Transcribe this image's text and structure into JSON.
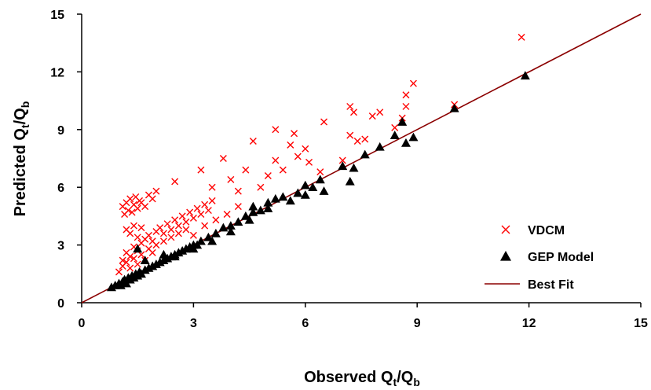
{
  "chart_data": {
    "type": "scatter",
    "xlabel": {
      "main": "Observed Q",
      "sub": "t",
      "sep": "/Q",
      "sub2": "b"
    },
    "ylabel": {
      "main": "Predicted Q",
      "sub": "t",
      "sep": "/Q",
      "sub2": "b"
    },
    "xlim": [
      0,
      15
    ],
    "ylim": [
      0,
      15
    ],
    "xticks": [
      "0",
      "3",
      "6",
      "9",
      "12",
      "15"
    ],
    "yticks": [
      "0",
      "3",
      "6",
      "9",
      "12",
      "15"
    ],
    "grid": false,
    "legend_position": "bottom-right",
    "colors": {
      "vdcm": "#ff0000",
      "gep": "#000000",
      "best_fit": "#8b0000"
    },
    "series": [
      {
        "name": "VDCM",
        "marker": "x",
        "points": [
          [
            1.1,
            5.0
          ],
          [
            1.15,
            4.6
          ],
          [
            1.2,
            5.2
          ],
          [
            1.25,
            4.8
          ],
          [
            1.3,
            5.4
          ],
          [
            1.35,
            4.7
          ],
          [
            1.4,
            5.1
          ],
          [
            1.45,
            5.5
          ],
          [
            1.5,
            4.9
          ],
          [
            1.55,
            5.3
          ],
          [
            1.6,
            5.2
          ],
          [
            1.7,
            5.0
          ],
          [
            1.8,
            5.6
          ],
          [
            1.9,
            5.4
          ],
          [
            2.0,
            5.8
          ],
          [
            1.2,
            3.8
          ],
          [
            1.3,
            3.6
          ],
          [
            1.4,
            4.0
          ],
          [
            1.5,
            3.4
          ],
          [
            1.6,
            3.9
          ],
          [
            1.1,
            2.2
          ],
          [
            1.2,
            2.6
          ],
          [
            1.3,
            2.4
          ],
          [
            1.4,
            2.9
          ],
          [
            1.5,
            2.7
          ],
          [
            1.6,
            3.1
          ],
          [
            1.7,
            3.3
          ],
          [
            1.8,
            3.5
          ],
          [
            1.9,
            3.2
          ],
          [
            2.0,
            3.7
          ],
          [
            2.1,
            3.9
          ],
          [
            2.2,
            3.6
          ],
          [
            2.3,
            4.1
          ],
          [
            2.4,
            3.8
          ],
          [
            2.5,
            4.3
          ],
          [
            2.6,
            4.0
          ],
          [
            2.7,
            4.5
          ],
          [
            2.8,
            4.2
          ],
          [
            2.9,
            4.7
          ],
          [
            3.0,
            4.4
          ],
          [
            3.1,
            4.9
          ],
          [
            3.2,
            4.6
          ],
          [
            3.3,
            5.1
          ],
          [
            3.4,
            4.8
          ],
          [
            3.5,
            5.3
          ],
          [
            1.0,
            1.6
          ],
          [
            1.1,
            1.9
          ],
          [
            1.2,
            2.1
          ],
          [
            1.3,
            1.8
          ],
          [
            1.4,
            2.3
          ],
          [
            1.5,
            2.0
          ],
          [
            1.6,
            2.5
          ],
          [
            1.7,
            2.2
          ],
          [
            1.8,
            2.8
          ],
          [
            1.9,
            2.6
          ],
          [
            2.0,
            3.0
          ],
          [
            2.2,
            3.2
          ],
          [
            2.4,
            3.4
          ],
          [
            2.6,
            3.6
          ],
          [
            2.8,
            3.8
          ],
          [
            2.5,
            6.3
          ],
          [
            3.2,
            6.9
          ],
          [
            3.5,
            6.0
          ],
          [
            3.8,
            7.5
          ],
          [
            4.0,
            6.4
          ],
          [
            4.2,
            5.8
          ],
          [
            4.4,
            6.9
          ],
          [
            4.6,
            8.4
          ],
          [
            4.8,
            6.0
          ],
          [
            5.0,
            6.6
          ],
          [
            5.2,
            7.4
          ],
          [
            5.4,
            6.9
          ],
          [
            5.6,
            8.2
          ],
          [
            5.8,
            7.6
          ],
          [
            6.0,
            8.0
          ],
          [
            5.2,
            9.0
          ],
          [
            5.7,
            8.8
          ],
          [
            6.1,
            7.3
          ],
          [
            6.5,
            9.4
          ],
          [
            6.4,
            6.8
          ],
          [
            7.0,
            7.4
          ],
          [
            7.2,
            8.7
          ],
          [
            7.3,
            9.9
          ],
          [
            7.2,
            10.2
          ],
          [
            7.4,
            8.4
          ],
          [
            7.6,
            8.5
          ],
          [
            7.8,
            9.7
          ],
          [
            8.0,
            9.9
          ],
          [
            8.4,
            9.1
          ],
          [
            8.6,
            9.6
          ],
          [
            8.7,
            10.2
          ],
          [
            8.7,
            10.8
          ],
          [
            8.9,
            11.4
          ],
          [
            10.0,
            10.3
          ],
          [
            11.8,
            13.8
          ],
          [
            3.0,
            3.5
          ],
          [
            3.3,
            4.0
          ],
          [
            3.6,
            4.3
          ],
          [
            3.9,
            4.6
          ],
          [
            4.2,
            5.0
          ]
        ]
      },
      {
        "name": "GEP Model",
        "marker": "triangle",
        "points": [
          [
            0.8,
            0.8
          ],
          [
            0.9,
            0.9
          ],
          [
            1.0,
            1.0
          ],
          [
            1.05,
            0.9
          ],
          [
            1.1,
            1.1
          ],
          [
            1.15,
            1.2
          ],
          [
            1.2,
            1.0
          ],
          [
            1.25,
            1.3
          ],
          [
            1.3,
            1.2
          ],
          [
            1.35,
            1.4
          ],
          [
            1.4,
            1.3
          ],
          [
            1.45,
            1.5
          ],
          [
            1.5,
            1.4
          ],
          [
            1.55,
            1.6
          ],
          [
            1.6,
            1.5
          ],
          [
            1.7,
            1.7
          ],
          [
            1.8,
            1.8
          ],
          [
            1.9,
            1.9
          ],
          [
            2.0,
            2.0
          ],
          [
            2.1,
            2.1
          ],
          [
            2.2,
            2.2
          ],
          [
            2.3,
            2.3
          ],
          [
            2.4,
            2.4
          ],
          [
            2.5,
            2.5
          ],
          [
            2.6,
            2.6
          ],
          [
            2.7,
            2.7
          ],
          [
            2.8,
            2.8
          ],
          [
            2.9,
            2.9
          ],
          [
            3.0,
            3.0
          ],
          [
            3.2,
            3.2
          ],
          [
            3.4,
            3.4
          ],
          [
            3.6,
            3.6
          ],
          [
            3.8,
            3.9
          ],
          [
            4.0,
            4.0
          ],
          [
            4.2,
            4.2
          ],
          [
            4.4,
            4.5
          ],
          [
            4.6,
            4.7
          ],
          [
            4.6,
            5.0
          ],
          [
            4.8,
            4.8
          ],
          [
            5.0,
            4.9
          ],
          [
            5.2,
            5.4
          ],
          [
            5.4,
            5.5
          ],
          [
            5.6,
            5.3
          ],
          [
            5.8,
            5.7
          ],
          [
            6.0,
            6.1
          ],
          [
            6.2,
            6.0
          ],
          [
            6.4,
            6.4
          ],
          [
            6.5,
            5.8
          ],
          [
            7.0,
            7.1
          ],
          [
            7.2,
            6.3
          ],
          [
            7.3,
            7.0
          ],
          [
            7.6,
            7.7
          ],
          [
            8.0,
            8.1
          ],
          [
            8.4,
            8.7
          ],
          [
            8.6,
            9.4
          ],
          [
            8.7,
            8.3
          ],
          [
            8.9,
            8.6
          ],
          [
            10.0,
            10.1
          ],
          [
            11.9,
            11.8
          ],
          [
            1.5,
            2.8
          ],
          [
            1.7,
            2.2
          ],
          [
            2.2,
            2.5
          ],
          [
            2.5,
            2.4
          ],
          [
            3.0,
            2.8
          ],
          [
            3.5,
            3.2
          ],
          [
            4.0,
            3.7
          ],
          [
            4.5,
            4.3
          ],
          [
            5.0,
            5.2
          ],
          [
            6.0,
            5.6
          ],
          [
            3.1,
            3.0
          ]
        ]
      },
      {
        "name": "Best Fit",
        "marker": "line",
        "points": [
          [
            0,
            0
          ],
          [
            15,
            15
          ]
        ]
      }
    ]
  }
}
